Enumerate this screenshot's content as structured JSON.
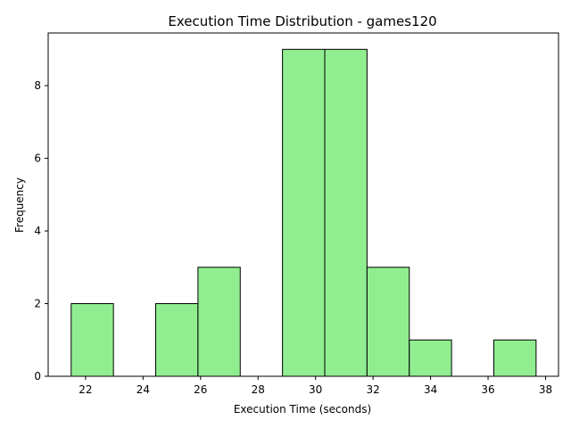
{
  "chart_data": {
    "type": "bar",
    "title": "Execution Time Distribution - games120",
    "xlabel": "Execution Time (seconds)",
    "ylabel": "Frequency",
    "bins": [
      {
        "start": 21.5,
        "end": 22.97,
        "count": 2
      },
      {
        "start": 22.97,
        "end": 24.44,
        "count": 0
      },
      {
        "start": 24.44,
        "end": 25.91,
        "count": 2
      },
      {
        "start": 25.91,
        "end": 27.38,
        "count": 3
      },
      {
        "start": 27.38,
        "end": 28.85,
        "count": 0
      },
      {
        "start": 28.85,
        "end": 30.32,
        "count": 9
      },
      {
        "start": 30.32,
        "end": 31.79,
        "count": 9
      },
      {
        "start": 31.79,
        "end": 33.26,
        "count": 3
      },
      {
        "start": 33.26,
        "end": 34.73,
        "count": 1
      },
      {
        "start": 34.73,
        "end": 36.2,
        "count": 0
      },
      {
        "start": 36.2,
        "end": 37.67,
        "count": 1
      }
    ],
    "xlim": [
      20.7,
      38.45
    ],
    "ylim": [
      0,
      9.45
    ],
    "xticks": [
      22,
      24,
      26,
      28,
      30,
      32,
      34,
      36,
      38
    ],
    "yticks": [
      0,
      2,
      4,
      6,
      8
    ],
    "bar_color": "#90ee90",
    "edge_color": "#000000",
    "grid": false,
    "legend": "none"
  }
}
